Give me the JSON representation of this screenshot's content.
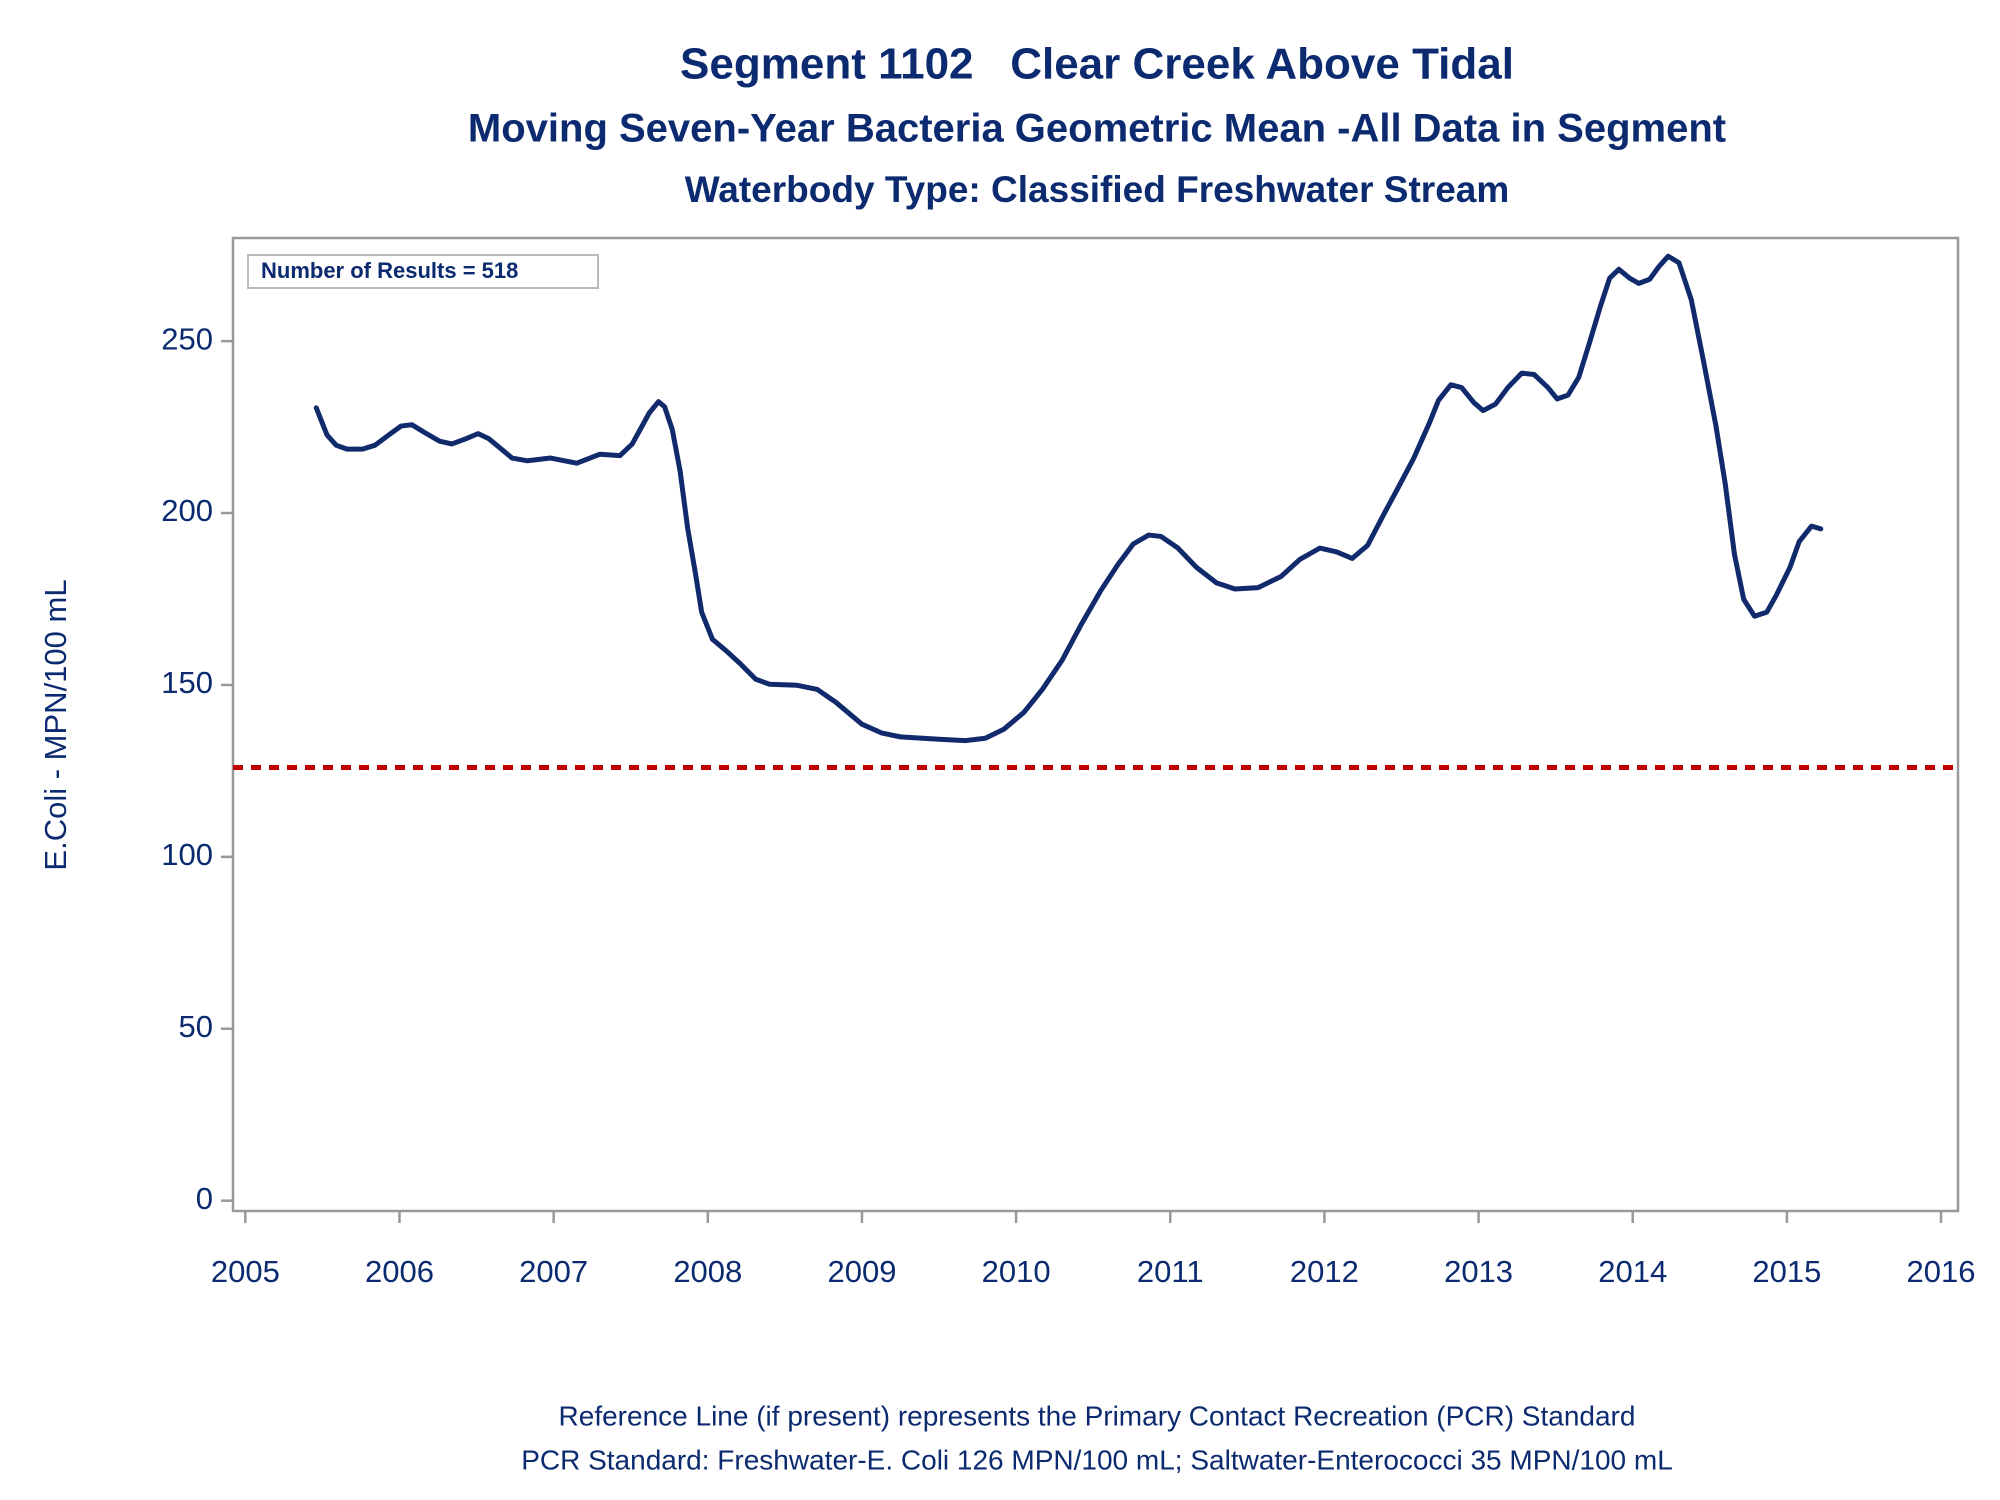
{
  "chart_data": {
    "type": "line",
    "title": "Segment 1102   Clear Creek Above Tidal",
    "subtitles": [
      "Moving Seven-Year Bacteria Geometric Mean -All Data in Segment",
      "Waterbody Type: Classified Freshwater Stream"
    ],
    "ylabel": "E.Coli - MPN/100 mL",
    "annotation": "Number of Results = 518",
    "footnotes": [
      "Reference Line (if present) represents the Primary Contact Recreation (PCR) Standard",
      "PCR Standard: Freshwater-E. Coli 126 MPN/100 mL; Saltwater-Enterococci 35 MPN/100 mL"
    ],
    "color": "#112a6b",
    "x": [
      2005.46,
      2005.53,
      2005.59,
      2005.66,
      2005.76,
      2005.84,
      2005.93,
      2006.01,
      2006.08,
      2006.16,
      2006.26,
      2006.34,
      2006.43,
      2006.51,
      2006.58,
      2006.65,
      2006.73,
      2006.83,
      2006.98,
      2007.15,
      2007.3,
      2007.43,
      2007.51,
      2007.62,
      2007.68,
      2007.72,
      2007.77,
      2007.82,
      2007.87,
      2007.92,
      2007.96,
      2008.03,
      2008.12,
      2008.21,
      2008.31,
      2008.4,
      2008.58,
      2008.71,
      2008.83,
      2009.0,
      2009.13,
      2009.25,
      2009.5,
      2009.67,
      2009.8,
      2009.92,
      2010.05,
      2010.17,
      2010.3,
      2010.42,
      2010.55,
      2010.66,
      2010.76,
      2010.86,
      2010.94,
      2011.05,
      2011.17,
      2011.3,
      2011.42,
      2011.57,
      2011.72,
      2011.84,
      2011.97,
      2012.08,
      2012.18,
      2012.28,
      2012.38,
      2012.47,
      2012.58,
      2012.68,
      2012.74,
      2012.82,
      2012.89,
      2012.97,
      2013.03,
      2013.11,
      2013.19,
      2013.28,
      2013.36,
      2013.45,
      2013.51,
      2013.58,
      2013.65,
      2013.72,
      2013.79,
      2013.85,
      2013.91,
      2013.98,
      2014.04,
      2014.11,
      2014.17,
      2014.23,
      2014.3,
      2014.38,
      2014.46,
      2014.54,
      2014.6,
      2014.66,
      2014.72,
      2014.79,
      2014.87,
      2014.93,
      2015.02,
      2015.08,
      2015.16,
      2015.22
    ],
    "values": [
      230.6,
      222.7,
      219.7,
      218.6,
      218.6,
      219.7,
      222.7,
      225.3,
      225.7,
      223.5,
      220.9,
      220.1,
      221.6,
      223.1,
      221.6,
      219.0,
      216.0,
      215.2,
      216.0,
      214.5,
      217.1,
      216.7,
      220.1,
      229.1,
      232.4,
      230.9,
      224.2,
      212.3,
      195.4,
      182.4,
      171.2,
      163.3,
      159.9,
      156.2,
      151.7,
      150.2,
      149.9,
      148.7,
      145.0,
      138.6,
      136.0,
      134.9,
      134.2,
      133.8,
      134.5,
      137.1,
      142.0,
      148.7,
      157.3,
      167.4,
      177.5,
      185.0,
      191.0,
      193.6,
      193.2,
      189.8,
      184.2,
      179.7,
      177.9,
      178.3,
      181.6,
      186.5,
      189.8,
      188.7,
      186.8,
      190.6,
      199.2,
      206.7,
      216.0,
      226.1,
      232.8,
      237.3,
      236.5,
      232.1,
      229.8,
      231.7,
      236.5,
      240.7,
      240.3,
      236.5,
      233.2,
      234.3,
      239.5,
      249.6,
      260.1,
      268.3,
      270.9,
      268.3,
      266.8,
      268.0,
      271.7,
      274.7,
      272.8,
      262.0,
      244.0,
      225.3,
      208.5,
      188.0,
      174.9,
      170.0,
      171.2,
      176.0,
      184.2,
      191.7,
      196.2,
      195.4
    ],
    "reference_line": {
      "value": 126,
      "color": "#c00000"
    },
    "xlim": [
      2004.92,
      2016.11
    ],
    "xticks": [
      2005,
      2006,
      2007,
      2008,
      2009,
      2010,
      2011,
      2012,
      2013,
      2014,
      2015,
      2016
    ],
    "ylim": [
      -3,
      280
    ],
    "yticks": [
      0,
      50,
      100,
      150,
      200,
      250
    ],
    "grid": false
  }
}
